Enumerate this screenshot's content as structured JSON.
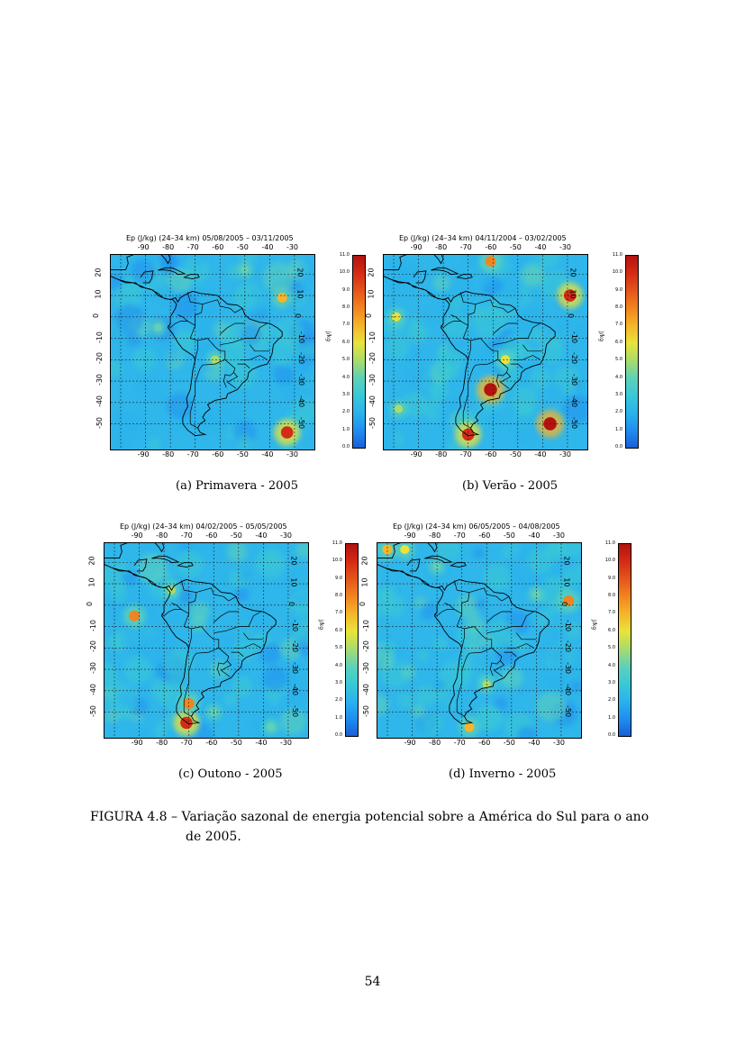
{
  "panels": [
    {
      "title": "Ep (J/kg) (24–34 km)   05/08/2005 – 03/11/2005",
      "caption": "(a) Primavera - 2005",
      "hotspots": [
        {
          "lon": -33,
          "lat": -54,
          "v": 10
        },
        {
          "lon": -35,
          "lat": 9,
          "v": 7
        },
        {
          "lon": -62,
          "lat": -20,
          "v": 5
        },
        {
          "lon": -50,
          "lat": 22,
          "v": 4
        },
        {
          "lon": -85,
          "lat": -5,
          "v": 4
        }
      ]
    },
    {
      "title": "Ep (J/kg) (24–34 km)   04/11/2004 – 03/02/2005",
      "caption": "(b) Verão - 2005",
      "hotspots": [
        {
          "lon": -61,
          "lat": -34,
          "v": 11
        },
        {
          "lon": -37,
          "lat": -50,
          "v": 11
        },
        {
          "lon": -70,
          "lat": -55,
          "v": 10
        },
        {
          "lon": -29,
          "lat": 10,
          "v": 10
        },
        {
          "lon": -61,
          "lat": 26,
          "v": 8
        },
        {
          "lon": -99,
          "lat": 0,
          "v": 6
        },
        {
          "lon": -55,
          "lat": -20,
          "v": 6
        },
        {
          "lon": -98,
          "lat": -43,
          "v": 5
        }
      ]
    },
    {
      "title": "Ep (J/kg) (24–34 km)   04/02/2005 – 05/05/2005",
      "caption": "(c) Outono - 2005",
      "hotspots": [
        {
          "lon": -71,
          "lat": -55,
          "v": 10
        },
        {
          "lon": -70,
          "lat": -46,
          "v": 8
        },
        {
          "lon": -92,
          "lat": -5,
          "v": 8
        },
        {
          "lon": -77,
          "lat": 7,
          "v": 5
        },
        {
          "lon": -37,
          "lat": -57,
          "v": 4
        },
        {
          "lon": -60,
          "lat": -50,
          "v": 4
        }
      ]
    },
    {
      "title": "Ep (J/kg) (24–34 km)   06/05/2005 – 04/08/2005",
      "caption": "(d) Inverno - 2005",
      "hotspots": [
        {
          "lon": -27,
          "lat": 2,
          "v": 8
        },
        {
          "lon": -100,
          "lat": 26,
          "v": 7
        },
        {
          "lon": -67,
          "lat": -57,
          "v": 7
        },
        {
          "lon": -93,
          "lat": 26,
          "v": 6
        },
        {
          "lon": -60,
          "lat": -37,
          "v": 5
        },
        {
          "lon": -40,
          "lat": 5,
          "v": 4
        },
        {
          "lon": -80,
          "lat": 18,
          "v": 4
        }
      ]
    }
  ],
  "x_ticks": [
    "-90",
    "-80",
    "-70",
    "-60",
    "-50",
    "-40",
    "-30"
  ],
  "y_ticks": [
    "20",
    "10",
    "0",
    "-10",
    "-20",
    "-30",
    "-40",
    "-50"
  ],
  "colorbar_ticks": [
    "11.0",
    "10.0",
    "9.0",
    "8.0",
    "7.0",
    "6.0",
    "5.0",
    "4.0",
    "3.0",
    "2.0",
    "1.0",
    "0.0"
  ],
  "colorbar_unit": "J/kg",
  "colormap": [
    "#1a5fd9",
    "#1f8ff0",
    "#2ab3ec",
    "#39c9d6",
    "#5fd1b8",
    "#a9dc6a",
    "#e8e33a",
    "#f5b52a",
    "#f2841f",
    "#e5551a",
    "#d42b15",
    "#b3120f"
  ],
  "figure_caption_line1": "FIGURA 4.8 – Variação sazonal de energia potencial sobre a América do Sul para o ano",
  "figure_caption_line2": "de 2005.",
  "page_number": "54"
}
